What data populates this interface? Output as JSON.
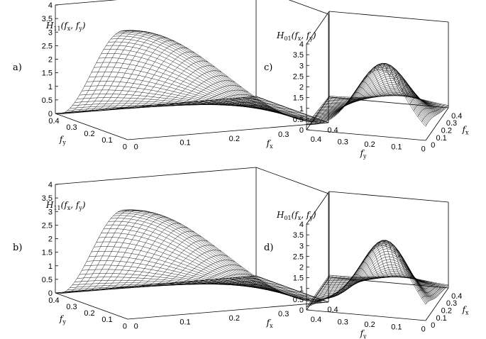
{
  "figure": {
    "panels": [
      {
        "id": "a",
        "panel_label": "a)",
        "z_label": {
          "main": "H",
          "sub": "11",
          "args": "(f",
          "a1": "x",
          "mid": ", f",
          "a2": "y",
          "end": ")"
        },
        "z_ticks": [
          "0",
          "0.5",
          "1",
          "1.5",
          "2",
          "2.5",
          "3",
          "3.5",
          "4"
        ],
        "fy_ticks": [
          "0.4",
          "0.3",
          "0.2",
          "0.1",
          "0"
        ],
        "fx_ticks": [
          "0",
          "0.1",
          "0.2",
          "0.3",
          "0.4"
        ],
        "fy_label": {
          "main": "f",
          "sub": "y"
        },
        "fx_label": {
          "main": "f",
          "sub": "x"
        }
      },
      {
        "id": "b",
        "panel_label": "b)",
        "z_label": {
          "main": "H",
          "sub": "11",
          "args": "(f",
          "a1": "x",
          "mid": ", f",
          "a2": "y",
          "end": ")"
        },
        "z_ticks": [
          "0",
          "0.5",
          "1",
          "1.5",
          "2",
          "2.5",
          "3",
          "3.5",
          "4"
        ],
        "fy_ticks": [
          "0.4",
          "0.3",
          "0.2",
          "0.1",
          "0"
        ],
        "fx_ticks": [
          "0",
          "0.1",
          "0.2",
          "0.3",
          "0.4"
        ],
        "fy_label": {
          "main": "f",
          "sub": "y"
        },
        "fx_label": {
          "main": "f",
          "sub": "x"
        }
      },
      {
        "id": "c",
        "panel_label": "c)",
        "z_label": {
          "main": "H",
          "sub": "01",
          "args": "(f",
          "a1": "x",
          "mid": ", f",
          "a2": "y",
          "end": ")"
        },
        "z_ticks": [
          "0",
          "0.5",
          "1",
          "1.5",
          "2",
          "2.5",
          "3",
          "3.5",
          "4"
        ],
        "fy_ticks": [
          "0.4",
          "0.3",
          "0.2",
          "0.1",
          "0"
        ],
        "fx_ticks": [
          "0",
          "0.1",
          "0.2",
          "0.3",
          "0.4"
        ],
        "fy_label": {
          "main": "f",
          "sub": "y"
        },
        "fx_label": {
          "main": "f",
          "sub": "x"
        }
      },
      {
        "id": "d",
        "panel_label": "d)",
        "z_label": {
          "main": "H",
          "sub": "01",
          "args": "(f",
          "a1": "x",
          "mid": ", f",
          "a2": "y",
          "end": ")"
        },
        "z_ticks": [
          "0",
          "0.5",
          "1",
          "1.5",
          "2",
          "2.5",
          "3",
          "3.5",
          "4"
        ],
        "fy_ticks": [
          "0.4",
          "0.3",
          "0.2",
          "0.1",
          "0"
        ],
        "fx_ticks": [
          "0",
          "0.1",
          "0.2",
          "0.3",
          "0.4"
        ],
        "fy_label": {
          "main": "f",
          "sub": "y"
        },
        "fx_label": {
          "main": "f",
          "sub": "x"
        }
      }
    ]
  },
  "colors": {
    "mesh": "#000000",
    "background": "#ffffff"
  }
}
